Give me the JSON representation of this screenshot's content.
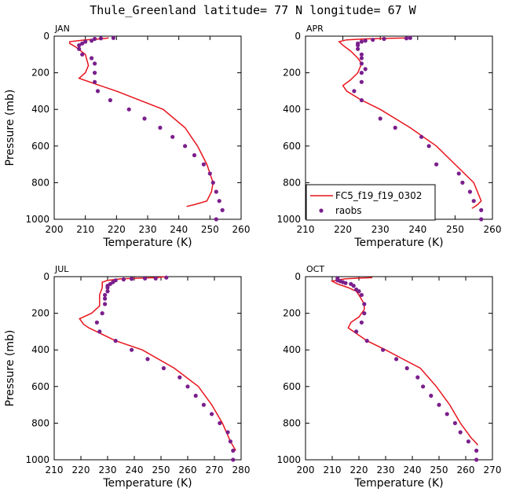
{
  "figure_title": "Thule_Greenland  latitude= 77 N longitude= 67 W",
  "colors": {
    "model": "#e8141c",
    "obs": "#7a1f8c"
  },
  "legend": {
    "model_label": "FC5_f19_f19_0302",
    "obs_label": "raobs",
    "panel": 1
  },
  "chart_data": [
    {
      "type": "line",
      "panel_label": "JAN",
      "xlabel": "Temperature (K)",
      "ylabel": "Pressure (mb)",
      "xlim": [
        200,
        260
      ],
      "ylim": [
        1000,
        0
      ],
      "xticks": [
        200,
        210,
        220,
        230,
        240,
        250,
        260
      ],
      "yticks": [
        0,
        200,
        400,
        600,
        800,
        1000
      ],
      "model": [
        [
          217.5,
          10
        ],
        [
          215,
          15
        ],
        [
          210,
          20
        ],
        [
          205,
          30
        ],
        [
          205,
          40
        ],
        [
          207,
          60
        ],
        [
          210,
          100
        ],
        [
          211,
          160
        ],
        [
          210,
          200
        ],
        [
          208,
          230
        ],
        [
          213,
          260
        ],
        [
          220,
          300
        ],
        [
          235,
          400
        ],
        [
          242,
          500
        ],
        [
          246,
          600
        ],
        [
          249,
          700
        ],
        [
          251,
          800
        ],
        [
          250.5,
          850
        ],
        [
          249,
          900
        ],
        [
          245,
          920
        ],
        [
          242.5,
          930
        ]
      ],
      "obs": [
        [
          219,
          10
        ],
        [
          215,
          12
        ],
        [
          213,
          15
        ],
        [
          212,
          25
        ],
        [
          210,
          30
        ],
        [
          209,
          40
        ],
        [
          208,
          50
        ],
        [
          208,
          70
        ],
        [
          209,
          100
        ],
        [
          212,
          120
        ],
        [
          213,
          150
        ],
        [
          213,
          200
        ],
        [
          213,
          250
        ],
        [
          214,
          300
        ],
        [
          218,
          350
        ],
        [
          224,
          400
        ],
        [
          229,
          450
        ],
        [
          234,
          500
        ],
        [
          238,
          550
        ],
        [
          242,
          600
        ],
        [
          245,
          650
        ],
        [
          248,
          700
        ],
        [
          250,
          750
        ],
        [
          251,
          800
        ],
        [
          252,
          850
        ],
        [
          253,
          900
        ],
        [
          254,
          950
        ],
        [
          252,
          1000
        ]
      ]
    },
    {
      "type": "line",
      "panel_label": "APR",
      "xlabel": "Temperature (K)",
      "ylabel": "",
      "xlim": [
        210,
        260
      ],
      "ylim": [
        1000,
        0
      ],
      "xticks": [
        210,
        220,
        230,
        240,
        250,
        260
      ],
      "yticks": [
        0,
        200,
        400,
        600,
        800,
        1000
      ],
      "model": [
        [
          238,
          10
        ],
        [
          232,
          12
        ],
        [
          226,
          15
        ],
        [
          221,
          20
        ],
        [
          219,
          30
        ],
        [
          220,
          50
        ],
        [
          222,
          80
        ],
        [
          224,
          120
        ],
        [
          225,
          150
        ],
        [
          224,
          200
        ],
        [
          222,
          240
        ],
        [
          220,
          270
        ],
        [
          221,
          300
        ],
        [
          225,
          350
        ],
        [
          230,
          400
        ],
        [
          238,
          500
        ],
        [
          245,
          600
        ],
        [
          250,
          700
        ],
        [
          255,
          800
        ],
        [
          257,
          900
        ],
        [
          256,
          920
        ],
        [
          255,
          935
        ],
        [
          254.5,
          940
        ]
      ],
      "obs": [
        [
          238,
          10
        ],
        [
          237,
          12
        ],
        [
          231,
          15
        ],
        [
          228,
          20
        ],
        [
          226,
          25
        ],
        [
          225,
          30
        ],
        [
          224,
          40
        ],
        [
          224,
          50
        ],
        [
          224,
          70
        ],
        [
          225,
          100
        ],
        [
          225,
          120
        ],
        [
          225,
          150
        ],
        [
          226,
          180
        ],
        [
          225,
          200
        ],
        [
          225,
          250
        ],
        [
          223,
          300
        ],
        [
          225,
          350
        ],
        [
          230,
          450
        ],
        [
          234,
          500
        ],
        [
          241,
          550
        ],
        [
          243,
          600
        ],
        [
          245,
          700
        ],
        [
          251,
          750
        ],
        [
          252,
          800
        ],
        [
          254,
          850
        ],
        [
          255,
          900
        ],
        [
          257,
          950
        ],
        [
          257,
          1000
        ]
      ]
    },
    {
      "type": "line",
      "panel_label": "JUL",
      "xlabel": "Temperature (K)",
      "ylabel": "Pressure (mb)",
      "xlim": [
        210,
        280
      ],
      "ylim": [
        1000,
        0
      ],
      "xticks": [
        210,
        220,
        230,
        240,
        250,
        260,
        270,
        280
      ],
      "yticks": [
        0,
        200,
        400,
        600,
        800,
        1000
      ],
      "model": [
        [
          252,
          0
        ],
        [
          248,
          5
        ],
        [
          242,
          8
        ],
        [
          235,
          12
        ],
        [
          230,
          20
        ],
        [
          228,
          30
        ],
        [
          228,
          60
        ],
        [
          227,
          100
        ],
        [
          227,
          160
        ],
        [
          224,
          200
        ],
        [
          219.5,
          230
        ],
        [
          221,
          260
        ],
        [
          223,
          280
        ],
        [
          233,
          350
        ],
        [
          243,
          400
        ],
        [
          255,
          500
        ],
        [
          264,
          600
        ],
        [
          269,
          700
        ],
        [
          273,
          800
        ],
        [
          276,
          900
        ],
        [
          278,
          950
        ]
      ],
      "obs": [
        [
          252,
          5
        ],
        [
          248,
          10
        ],
        [
          244,
          10
        ],
        [
          239,
          12
        ],
        [
          236,
          15
        ],
        [
          233,
          20
        ],
        [
          232,
          30
        ],
        [
          231,
          40
        ],
        [
          230,
          50
        ],
        [
          230,
          60
        ],
        [
          230,
          80
        ],
        [
          229,
          100
        ],
        [
          229,
          120
        ],
        [
          229,
          150
        ],
        [
          228,
          200
        ],
        [
          226,
          250
        ],
        [
          227,
          300
        ],
        [
          233,
          350
        ],
        [
          239,
          400
        ],
        [
          245,
          450
        ],
        [
          251,
          500
        ],
        [
          257,
          550
        ],
        [
          260,
          600
        ],
        [
          263,
          650
        ],
        [
          266,
          700
        ],
        [
          269,
          750
        ],
        [
          272,
          800
        ],
        [
          275,
          850
        ],
        [
          276,
          900
        ],
        [
          277,
          950
        ],
        [
          277,
          1000
        ]
      ]
    },
    {
      "type": "line",
      "panel_label": "OCT",
      "xlabel": "Temperature (K)",
      "ylabel": "",
      "xlim": [
        200,
        270
      ],
      "ylim": [
        1000,
        0
      ],
      "xticks": [
        200,
        210,
        220,
        230,
        240,
        250,
        260,
        270
      ],
      "yticks": [
        0,
        200,
        400,
        600,
        800,
        1000
      ],
      "model": [
        [
          225,
          5
        ],
        [
          220,
          8
        ],
        [
          215,
          12
        ],
        [
          212,
          18
        ],
        [
          210,
          25
        ],
        [
          212,
          40
        ],
        [
          216,
          60
        ],
        [
          219,
          80
        ],
        [
          220,
          100
        ],
        [
          222,
          150
        ],
        [
          222,
          180
        ],
        [
          220,
          220
        ],
        [
          217,
          250
        ],
        [
          216,
          280
        ],
        [
          218,
          300
        ],
        [
          223,
          350
        ],
        [
          230,
          400
        ],
        [
          243,
          500
        ],
        [
          249,
          600
        ],
        [
          254,
          700
        ],
        [
          258,
          800
        ],
        [
          262,
          880
        ],
        [
          264,
          910
        ],
        [
          264.5,
          920
        ]
      ],
      "obs": [
        [
          212,
          10
        ],
        [
          212,
          20
        ],
        [
          213,
          25
        ],
        [
          214,
          30
        ],
        [
          215,
          35
        ],
        [
          217,
          40
        ],
        [
          218,
          50
        ],
        [
          219,
          70
        ],
        [
          220,
          80
        ],
        [
          221,
          100
        ],
        [
          222,
          150
        ],
        [
          222,
          200
        ],
        [
          221,
          250
        ],
        [
          219,
          300
        ],
        [
          223,
          350
        ],
        [
          229,
          400
        ],
        [
          234,
          450
        ],
        [
          238,
          500
        ],
        [
          242,
          550
        ],
        [
          244,
          600
        ],
        [
          247,
          650
        ],
        [
          250,
          700
        ],
        [
          253,
          750
        ],
        [
          256,
          800
        ],
        [
          258,
          850
        ],
        [
          261,
          900
        ],
        [
          264,
          950
        ],
        [
          264,
          1000
        ]
      ]
    }
  ]
}
